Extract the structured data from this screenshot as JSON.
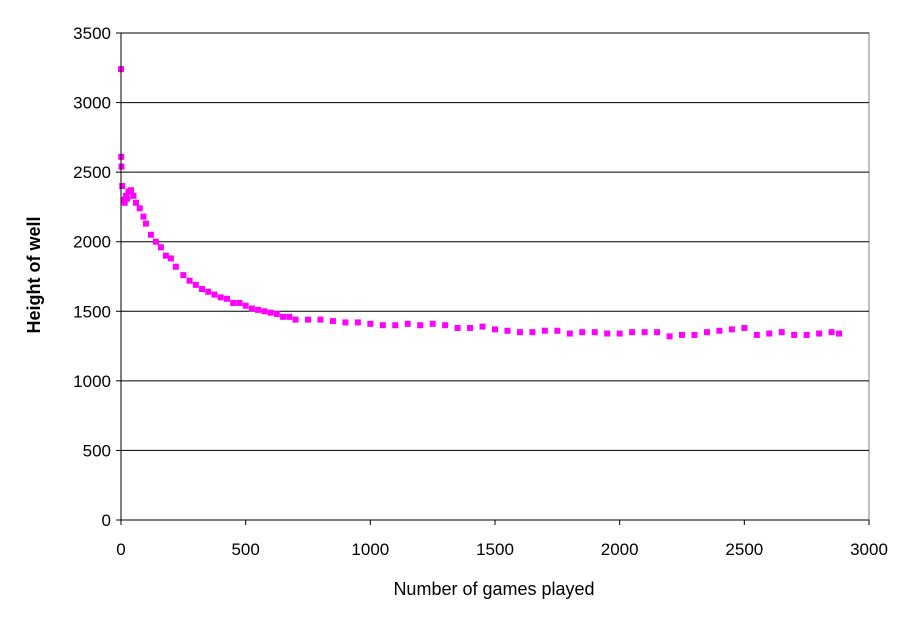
{
  "chart_data": {
    "type": "scatter",
    "title": "",
    "xlabel": "Number of games played",
    "ylabel": "Height of well",
    "xlim": [
      0,
      3000
    ],
    "ylim": [
      0,
      3500
    ],
    "x_ticks": [
      "0",
      "500",
      "1000",
      "1500",
      "2000",
      "2500",
      "3000"
    ],
    "y_ticks": [
      "0",
      "500",
      "1000",
      "1500",
      "2000",
      "2500",
      "3000",
      "3500"
    ],
    "grid": "horizontal",
    "legend": "none",
    "marker_color": "#ff00ff",
    "series": [
      {
        "x": [
          0,
          1,
          2,
          5,
          10,
          15,
          20,
          25,
          30,
          40,
          50,
          60,
          75,
          90,
          100,
          120,
          140,
          160,
          180,
          200,
          220,
          250,
          275,
          300,
          325,
          350,
          375,
          400,
          425,
          450,
          475,
          500,
          525,
          550,
          575,
          600,
          625,
          650,
          675,
          700,
          750,
          800,
          850,
          900,
          950,
          1000,
          1050,
          1100,
          1150,
          1200,
          1250,
          1300,
          1350,
          1400,
          1450,
          1500,
          1550,
          1600,
          1650,
          1700,
          1750,
          1800,
          1850,
          1900,
          1950,
          2000,
          2050,
          2100,
          2150,
          2200,
          2250,
          2300,
          2350,
          2400,
          2450,
          2500,
          2550,
          2600,
          2650,
          2700,
          2750,
          2800,
          2850,
          2880
        ],
        "y": [
          3240,
          2610,
          2540,
          2400,
          2300,
          2280,
          2330,
          2310,
          2360,
          2370,
          2330,
          2280,
          2240,
          2180,
          2130,
          2050,
          2000,
          1960,
          1900,
          1880,
          1820,
          1760,
          1720,
          1690,
          1660,
          1640,
          1620,
          1600,
          1590,
          1560,
          1560,
          1540,
          1520,
          1510,
          1500,
          1490,
          1480,
          1460,
          1460,
          1440,
          1440,
          1440,
          1430,
          1420,
          1420,
          1410,
          1400,
          1400,
          1410,
          1400,
          1410,
          1400,
          1380,
          1380,
          1390,
          1370,
          1360,
          1350,
          1350,
          1360,
          1360,
          1340,
          1350,
          1350,
          1340,
          1340,
          1350,
          1350,
          1350,
          1320,
          1330,
          1330,
          1350,
          1360,
          1370,
          1380,
          1330,
          1340,
          1350,
          1330,
          1330,
          1340,
          1350,
          1340
        ]
      }
    ]
  }
}
